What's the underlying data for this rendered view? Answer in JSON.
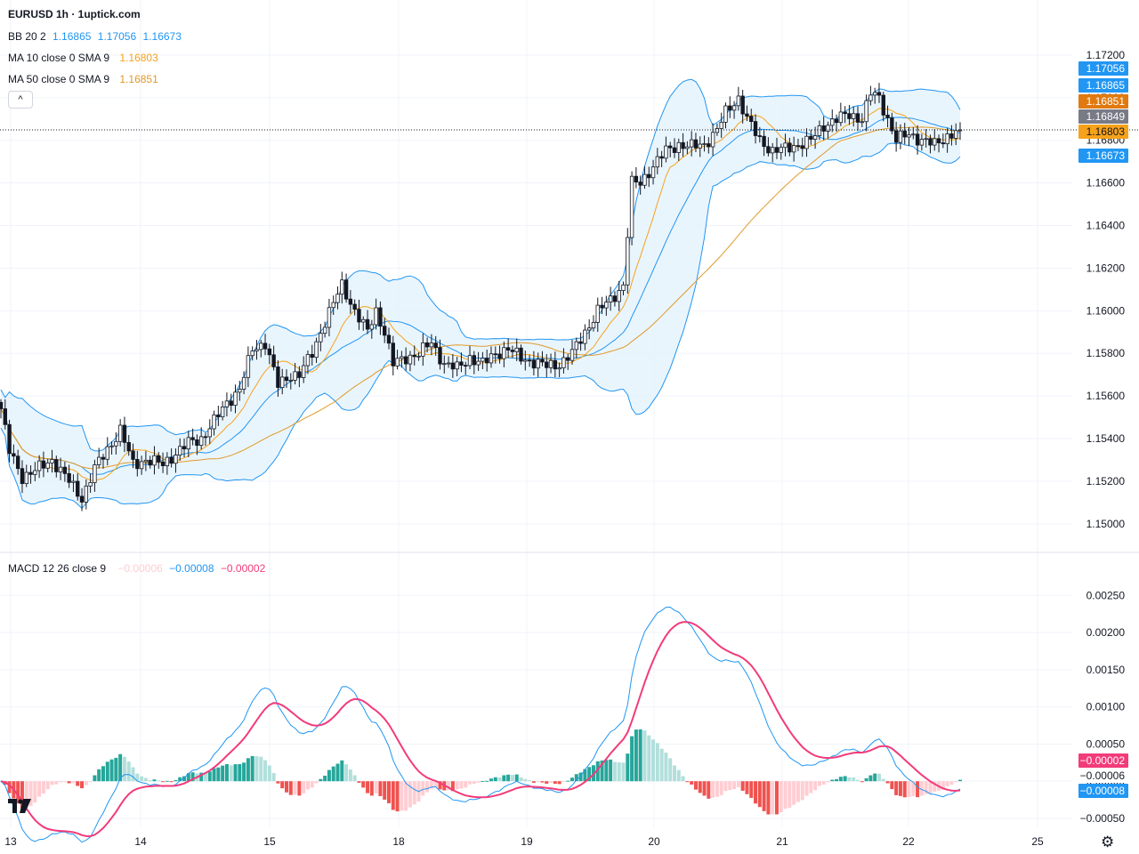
{
  "header": {
    "title": "EURUSD 1h · 1uptick.com",
    "bb": {
      "label": "BB 20 2",
      "values": [
        "1.16865",
        "1.17056",
        "1.16673"
      ]
    },
    "ma10": {
      "label": "MA 10 close 0 SMA 9",
      "value": "1.16803"
    },
    "ma50": {
      "label": "MA 50 close 0 SMA 9",
      "value": "1.16851"
    },
    "collapse_glyph": "^"
  },
  "macd_header": {
    "label": "MACD 12 26 close 9",
    "values": [
      "−0.00006",
      "−0.00008",
      "−0.00002"
    ]
  },
  "colors": {
    "up": "#26a69a",
    "down": "#131722",
    "bb": "#2196f3",
    "bb_fill": "#e3f2fd",
    "ma10": "#f7a21b",
    "ma50": "#e09a2a",
    "macd": "#2196f3",
    "signal": "#f23b7a",
    "hist_up_strong": "#26a69a",
    "hist_up_weak": "#b2dfdb",
    "hist_down_strong": "#ef5350",
    "hist_down_weak": "#ffcdd2",
    "price_line": "#131722"
  },
  "chart_data": [
    {
      "type": "candlestick",
      "title": "EURUSD 1h",
      "x_ticks": [
        "13",
        "14",
        "15",
        "18",
        "19",
        "20",
        "21",
        "22",
        "25"
      ],
      "y_ticks": [
        "1.15000",
        "1.15200",
        "1.15400",
        "1.15600",
        "1.15800",
        "1.16000",
        "1.16200",
        "1.16400",
        "1.16600",
        "1.16800",
        "1.17000",
        "1.17200"
      ],
      "ylim": [
        1.1487,
        1.174
      ],
      "price_labels": [
        {
          "value": "1.17056",
          "series": "BB upper"
        },
        {
          "value": "1.16865",
          "series": "BB basis"
        },
        {
          "value": "1.16851",
          "series": "MA 50"
        },
        {
          "value": "1.16849",
          "series": "last price"
        },
        {
          "value": "1.16803",
          "series": "MA 10"
        },
        {
          "value": "1.16673",
          "series": "BB lower"
        }
      ],
      "last_price": 1.16849,
      "close_keypoints": [
        [
          0,
          1.1554
        ],
        [
          2,
          1.1534
        ],
        [
          5,
          1.1522
        ],
        [
          8,
          1.1525
        ],
        [
          12,
          1.153
        ],
        [
          16,
          1.152
        ],
        [
          19,
          1.1512
        ],
        [
          22,
          1.1526
        ],
        [
          25,
          1.1535
        ],
        [
          28,
          1.1544
        ],
        [
          31,
          1.1528
        ],
        [
          34,
          1.153
        ],
        [
          38,
          1.1528
        ],
        [
          41,
          1.1533
        ],
        [
          44,
          1.1538
        ],
        [
          47,
          1.154
        ],
        [
          50,
          1.1548
        ],
        [
          53,
          1.1557
        ],
        [
          56,
          1.1563
        ],
        [
          59,
          1.1582
        ],
        [
          62,
          1.1585
        ],
        [
          65,
          1.1565
        ],
        [
          68,
          1.157
        ],
        [
          70,
          1.157
        ],
        [
          73,
          1.158
        ],
        [
          76,
          1.1595
        ],
        [
          80,
          1.1612
        ],
        [
          83,
          1.16
        ],
        [
          86,
          1.159
        ],
        [
          88,
          1.16
        ],
        [
          90,
          1.159
        ],
        [
          92,
          1.1575
        ],
        [
          95,
          1.1578
        ],
        [
          98,
          1.158
        ],
        [
          101,
          1.1585
        ],
        [
          104,
          1.1575
        ],
        [
          107,
          1.1573
        ],
        [
          110,
          1.1578
        ],
        [
          113,
          1.1575
        ],
        [
          116,
          1.158
        ],
        [
          119,
          1.1582
        ],
        [
          122,
          1.1578
        ],
        [
          125,
          1.1576
        ],
        [
          128,
          1.1574
        ],
        [
          131,
          1.1575
        ],
        [
          134,
          1.158
        ],
        [
          137,
          1.159
        ],
        [
          140,
          1.16
        ],
        [
          143,
          1.1605
        ],
        [
          146,
          1.1612
        ],
        [
          148,
          1.166
        ],
        [
          150,
          1.166
        ],
        [
          153,
          1.1668
        ],
        [
          156,
          1.1675
        ],
        [
          159,
          1.1678
        ],
        [
          162,
          1.1677
        ],
        [
          165,
          1.1678
        ],
        [
          168,
          1.1685
        ],
        [
          170,
          1.1693
        ],
        [
          173,
          1.17
        ],
        [
          175,
          1.169
        ],
        [
          178,
          1.168
        ],
        [
          181,
          1.1675
        ],
        [
          184,
          1.1676
        ],
        [
          187,
          1.1678
        ],
        [
          190,
          1.168
        ],
        [
          193,
          1.1687
        ],
        [
          196,
          1.169
        ],
        [
          199,
          1.1692
        ],
        [
          202,
          1.169
        ],
        [
          204,
          1.1702
        ],
        [
          206,
          1.17
        ],
        [
          208,
          1.169
        ],
        [
          210,
          1.168
        ],
        [
          213,
          1.1683
        ],
        [
          216,
          1.168
        ],
        [
          219,
          1.1678
        ],
        [
          222,
          1.1682
        ],
        [
          225,
          1.1685
        ]
      ],
      "series": [
        {
          "name": "BB 20 2"
        },
        {
          "name": "MA 10 close 0 SMA 9"
        },
        {
          "name": "MA 50 close 0 SMA 9"
        }
      ]
    },
    {
      "type": "line",
      "title": "MACD 12 26 close 9",
      "y_ticks": [
        "−0.00050",
        "0.00000",
        "0.00050",
        "0.00100",
        "0.00150",
        "0.00200",
        "0.00250"
      ],
      "ylim": [
        -0.00062,
        0.00285
      ],
      "value_labels": [
        {
          "value": "−0.00002",
          "series": "signal"
        },
        {
          "value": "−0.00006",
          "series": "histogram"
        },
        {
          "value": "−0.00008",
          "series": "MACD"
        }
      ]
    }
  ]
}
